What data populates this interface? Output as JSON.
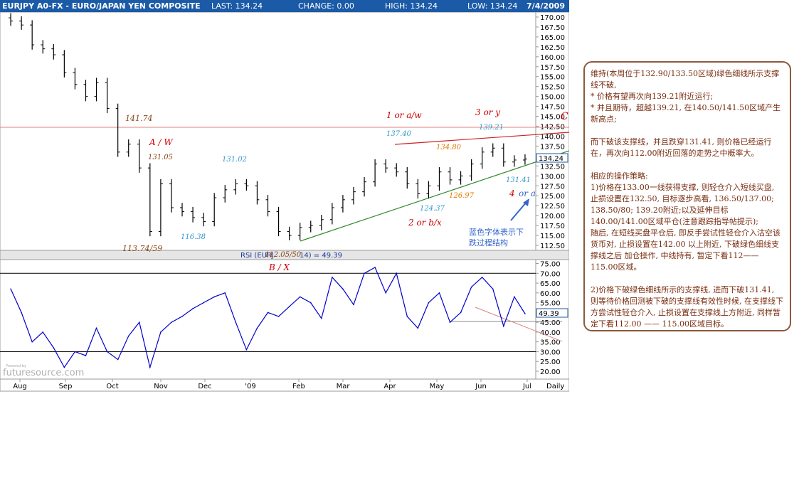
{
  "header": {
    "title": "EURJPY A0-FX - EURO/JAPAN YEN COMPOSITE",
    "last_label": "LAST: 134.24",
    "change_label": "CHANGE: 0.00",
    "high_label": "HIGH: 134.24",
    "low_label": "LOW: 134.24",
    "date": "7/4/2009"
  },
  "colors": {
    "header_bg": "#1b5aa6",
    "price": "#000000",
    "rsi": "#0000cc",
    "red_annotation": "#cc0000",
    "brown_label": "#8b4513",
    "cyan_label": "#3399cc",
    "orange_label": "#e07b00",
    "support_line": "#2e8b2e",
    "resistance_line": "#cc2222",
    "commentary_text": "#7a2e12"
  },
  "chart_data": [
    {
      "type": "ohlc",
      "ylim": [
        111.25,
        171.25
      ],
      "y_ticks": [
        "170.00",
        "167.50",
        "165.00",
        "162.50",
        "160.00",
        "157.50",
        "155.00",
        "152.50",
        "150.00",
        "147.50",
        "145.00",
        "142.50",
        "140.00",
        "137.50",
        "135.00",
        "132.50",
        "130.00",
        "127.50",
        "125.00",
        "122.50",
        "120.00",
        "117.50",
        "115.00",
        "112.50"
      ],
      "x_ticks": [
        "Aug",
        "Sep",
        "Oct",
        "Nov",
        "Dec",
        "'09",
        "Feb",
        "Mar",
        "Apr",
        "May",
        "Jun",
        "Jul",
        "Daily"
      ],
      "last_price_label": "134.24",
      "series": [
        {
          "name": "",
          "x": [
            "2008-07-28",
            "2008-08-04",
            "2008-08-11",
            "2008-08-18",
            "2008-08-25",
            "2008-09-01",
            "2008-09-08",
            "2008-09-15",
            "2008-09-22",
            "2008-09-29",
            "2008-10-06",
            "2008-10-13",
            "2008-10-20",
            "2008-10-27",
            "2008-11-03",
            "2008-11-10",
            "2008-11-17",
            "2008-11-24",
            "2008-12-01",
            "2008-12-08",
            "2008-12-15",
            "2008-12-22",
            "2008-12-29",
            "2009-01-05",
            "2009-01-12",
            "2009-01-19",
            "2009-01-26",
            "2009-02-02",
            "2009-02-09",
            "2009-02-16",
            "2009-02-23",
            "2009-03-02",
            "2009-03-09",
            "2009-03-16",
            "2009-03-23",
            "2009-03-30",
            "2009-04-06",
            "2009-04-13",
            "2009-04-20",
            "2009-04-27",
            "2009-05-04",
            "2009-05-11",
            "2009-05-18",
            "2009-05-25",
            "2009-06-01",
            "2009-06-08",
            "2009-06-15",
            "2009-06-22",
            "2009-06-29"
          ],
          "close": [
            169.0,
            168.0,
            163.0,
            162.0,
            160.5,
            156.0,
            153.0,
            150.0,
            153.5,
            147.0,
            136.0,
            138.0,
            132.0,
            116.0,
            128.0,
            122.0,
            121.0,
            119.5,
            118.5,
            124.5,
            126.5,
            128.0,
            127.5,
            124.0,
            121.0,
            116.0,
            115.0,
            117.0,
            117.5,
            119.0,
            122.0,
            124.0,
            126.0,
            128.5,
            133.0,
            132.0,
            131.0,
            128.0,
            125.5,
            127.5,
            131.0,
            129.0,
            130.0,
            133.0,
            136.0,
            137.0,
            133.5,
            134.0,
            134.24
          ]
        }
      ],
      "annotations": [
        {
          "text": "141.74",
          "color": "brown"
        },
        {
          "text": "A / W",
          "color": "red"
        },
        {
          "text": "131.05",
          "color": "brown"
        },
        {
          "text": "131.02",
          "color": "cyan"
        },
        {
          "text": "116.38",
          "color": "cyan"
        },
        {
          "text": "113.74/59",
          "color": "brown"
        },
        {
          "text": "112.05/50",
          "color": "brown"
        },
        {
          "text": "B / X",
          "color": "red"
        },
        {
          "text": "1 or a/w",
          "color": "red"
        },
        {
          "text": "137.40",
          "color": "cyan"
        },
        {
          "text": "134.80",
          "color": "orange"
        },
        {
          "text": "3 or y",
          "color": "red"
        },
        {
          "text": "139.21",
          "color": "cyan"
        },
        {
          "text": "C / Y",
          "color": "red"
        },
        {
          "text": "131.41",
          "color": "cyan"
        },
        {
          "text": "126.97",
          "color": "orange"
        },
        {
          "text": "124.37",
          "color": "cyan"
        },
        {
          "text": "2 or b/x",
          "color": "red"
        },
        {
          "text": "4",
          "color": "red"
        },
        {
          "text": "or a",
          "color": "blue"
        },
        {
          "text": "蓝色字体表示下",
          "color": "blue"
        },
        {
          "text": "跌过程结构",
          "color": "blue"
        }
      ]
    },
    {
      "type": "line",
      "title": "RSI (EURJ",
      "title_suffix": "14) = 49.39",
      "ylim": [
        16.0,
        77.0
      ],
      "y_ticks": [
        "75.00",
        "70.00",
        "65.00",
        "60.00",
        "55.00",
        "50.00",
        "45.00",
        "40.00",
        "35.00",
        "30.00",
        "25.00",
        "20.00"
      ],
      "reference_levels": [
        70,
        30
      ],
      "last_value_label": "49.39",
      "series": [
        {
          "name": "",
          "x": [
            "2008-07-28",
            "2008-08-04",
            "2008-08-11",
            "2008-08-18",
            "2008-08-25",
            "2008-09-01",
            "2008-09-08",
            "2008-09-15",
            "2008-09-22",
            "2008-09-29",
            "2008-10-06",
            "2008-10-13",
            "2008-10-20",
            "2008-10-27",
            "2008-11-03",
            "2008-11-10",
            "2008-11-17",
            "2008-11-24",
            "2008-12-01",
            "2008-12-08",
            "2008-12-15",
            "2008-12-22",
            "2008-12-29",
            "2009-01-05",
            "2009-01-12",
            "2009-01-19",
            "2009-01-26",
            "2009-02-02",
            "2009-02-09",
            "2009-02-16",
            "2009-02-23",
            "2009-03-02",
            "2009-03-09",
            "2009-03-16",
            "2009-03-23",
            "2009-03-30",
            "2009-04-06",
            "2009-04-13",
            "2009-04-20",
            "2009-04-27",
            "2009-05-04",
            "2009-05-11",
            "2009-05-18",
            "2009-05-25",
            "2009-06-01",
            "2009-06-08",
            "2009-06-15",
            "2009-06-22",
            "2009-06-29"
          ],
          "values": [
            62,
            50,
            35,
            40,
            32,
            22,
            30,
            28,
            42,
            30,
            26,
            38,
            45,
            22,
            40,
            45,
            48,
            52,
            55,
            58,
            60,
            45,
            31,
            42,
            50,
            48,
            53,
            58,
            55,
            47,
            68,
            62,
            54,
            70,
            73,
            60,
            70,
            48,
            42,
            55,
            60,
            45,
            50,
            63,
            68,
            62,
            43,
            58,
            49.39
          ]
        }
      ]
    }
  ],
  "watermark": {
    "small": "Powered by",
    "brand": "futuresource.com"
  },
  "commentary": {
    "paragraphs": [
      "维持(本周位于132.90/133.50区域)绿色细线所示支撑线不破,",
      "* 价格有望再次向139.21附近运行;",
      "* 并且期待，超越139.21, 在140.50/141.50区域产生新高点;",
      "",
      "而下破该支撑线，并且跌穿131.41, 则价格已经运行在，再次向112.00附近回落的走势之中概率大。",
      "",
      "相应的操作策略:",
      "1)价格在133.00一线获得支撑, 则轻仓介入短线买盘, 止损设置在132.50, 目标逐步高看, 136.50/137.00; 138.50/80; 139.20附近;以及延伸目标140.00/141.00区域平仓(注意跟踪指导帖提示);",
      "随后, 在短线买盘平仓后, 即反手尝试性轻仓介入沽空该货币对, 止损设置在142.00 以上附近, 下破绿色细线支撑线之后 加仓操作, 中线持有, 暂定下看112——115.00区域。",
      "",
      "2)价格下破绿色细线所示的支撑线, 进而下破131.41, 则等待价格回测被下破的支撑线有效性时候, 在支撑线下方尝试性轻仓介入, 止损设置在支撑线上方附近, 同样暂定下看112.00 —— 115.00区域目标。"
    ]
  }
}
